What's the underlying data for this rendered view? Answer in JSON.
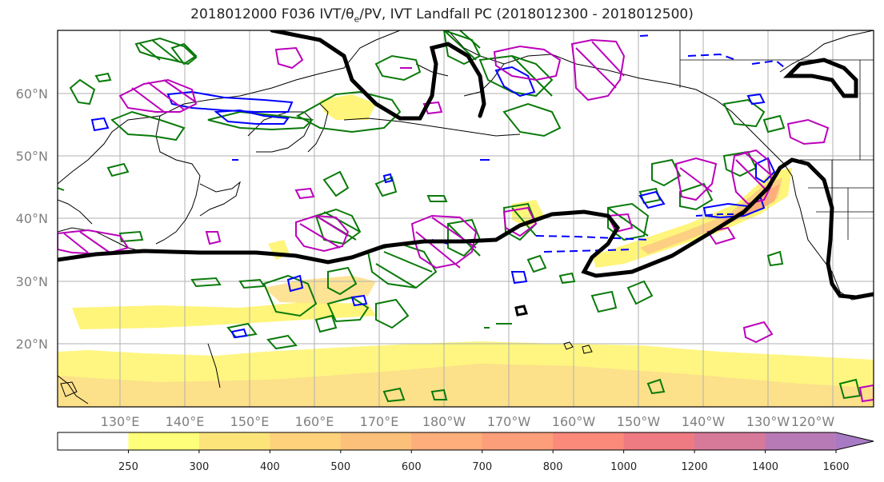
{
  "title": {
    "prefix": "2018012000 F036 IVT/",
    "theta_sym": "θ",
    "theta_sub": "e",
    "suffix": "/PV, IVT Landfall PC (2018012300 - 2018012500)"
  },
  "lat_ticks": [
    "60°N",
    "50°N",
    "40°N",
    "30°N",
    "20°N"
  ],
  "lon_ticks": [
    "130°E",
    "140°E",
    "150°E",
    "160°E",
    "170°E",
    "180°W",
    "170°W",
    "160°W",
    "150°W",
    "140°W",
    "130°W",
    "120°W"
  ],
  "colorbar": {
    "levels": [
      "250",
      "300",
      "400",
      "500",
      "600",
      "700",
      "800",
      "1000",
      "1200",
      "1400",
      "1600"
    ],
    "colors": [
      "#ffffff",
      "#fefe7a",
      "#fde47a",
      "#fdd27a",
      "#fdc07a",
      "#fdae7a",
      "#fd9e7a",
      "#fb8a7a",
      "#ee7a82",
      "#d77a9a",
      "#b87ab6",
      "#a87ac4"
    ]
  },
  "colors": {
    "pv": "#0a7a0a",
    "theta_e": "#0000ff",
    "pc_magenta": "#bb00bb",
    "landfall_black": "#000000",
    "coast": "#000000"
  }
}
